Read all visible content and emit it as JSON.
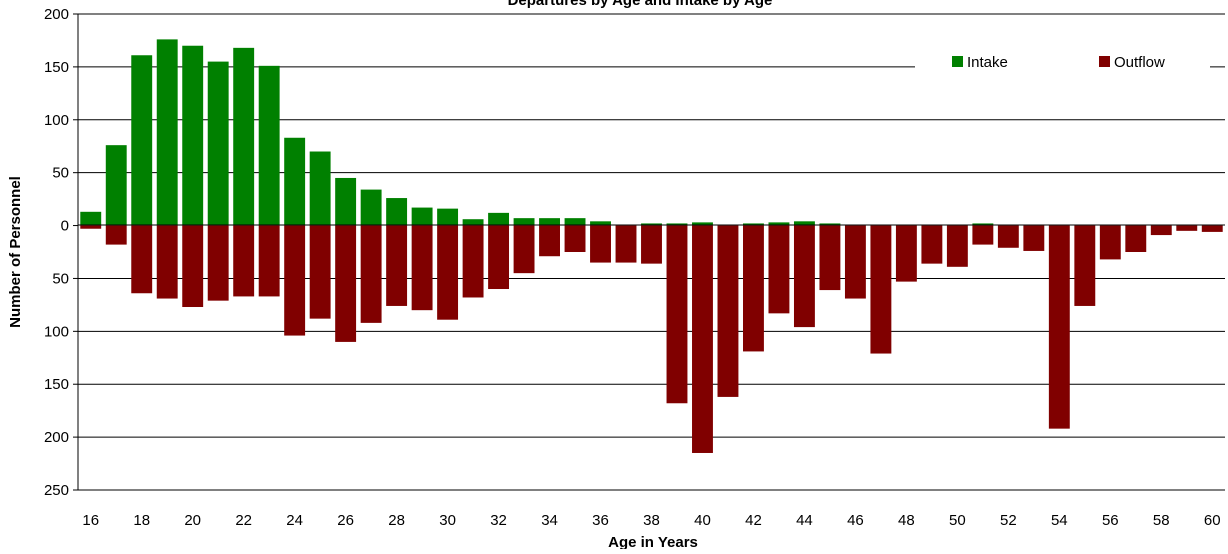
{
  "chart_data": {
    "type": "bar",
    "title": "Departures by Age and Intake by Age",
    "xlabel": "Age in Years",
    "ylabel": "Number of Personnel",
    "ylim": [
      -250,
      200
    ],
    "y_ticks": [
      {
        "value": 200,
        "label": "200"
      },
      {
        "value": 150,
        "label": "150"
      },
      {
        "value": 100,
        "label": "100"
      },
      {
        "value": 50,
        "label": "50"
      },
      {
        "value": 0,
        "label": "0"
      },
      {
        "value": -50,
        "label": "50"
      },
      {
        "value": -100,
        "label": "100"
      },
      {
        "value": -150,
        "label": "150"
      },
      {
        "value": -200,
        "label": "200"
      },
      {
        "value": -250,
        "label": "250"
      }
    ],
    "categories": [
      16,
      17,
      18,
      19,
      20,
      21,
      22,
      23,
      24,
      25,
      26,
      27,
      28,
      29,
      30,
      31,
      32,
      33,
      34,
      35,
      36,
      37,
      38,
      39,
      40,
      41,
      42,
      43,
      44,
      45,
      46,
      47,
      48,
      49,
      50,
      51,
      52,
      53,
      54,
      55,
      56,
      57,
      58,
      59,
      60
    ],
    "x_tick_labels": [
      "16",
      "18",
      "20",
      "22",
      "24",
      "26",
      "28",
      "30",
      "32",
      "34",
      "36",
      "38",
      "40",
      "42",
      "44",
      "46",
      "48",
      "50",
      "52",
      "54",
      "56",
      "58",
      "60"
    ],
    "series": [
      {
        "name": "Intake",
        "color": "#008000",
        "values": [
          13,
          76,
          161,
          176,
          170,
          155,
          168,
          151,
          83,
          70,
          45,
          34,
          26,
          17,
          16,
          6,
          12,
          7,
          7,
          7,
          4,
          0,
          2,
          2,
          3,
          0,
          2,
          3,
          4,
          2,
          0,
          0,
          1,
          0,
          1,
          2,
          0,
          0,
          0,
          0,
          0,
          1,
          0,
          0,
          0
        ]
      },
      {
        "name": "Outflow",
        "color": "#800000",
        "values": [
          -3,
          -18,
          -64,
          -69,
          -77,
          -71,
          -67,
          -67,
          -104,
          -88,
          -110,
          -92,
          -76,
          -80,
          -89,
          -68,
          -60,
          -45,
          -29,
          -25,
          -35,
          -35,
          -36,
          -168,
          -215,
          -162,
          -119,
          -83,
          -96,
          -61,
          -69,
          -121,
          -53,
          -36,
          -39,
          -18,
          -21,
          -24,
          -192,
          -76,
          -32,
          -25,
          -9,
          -5,
          -6
        ]
      }
    ],
    "legend_position": "top-right",
    "grid": true
  }
}
